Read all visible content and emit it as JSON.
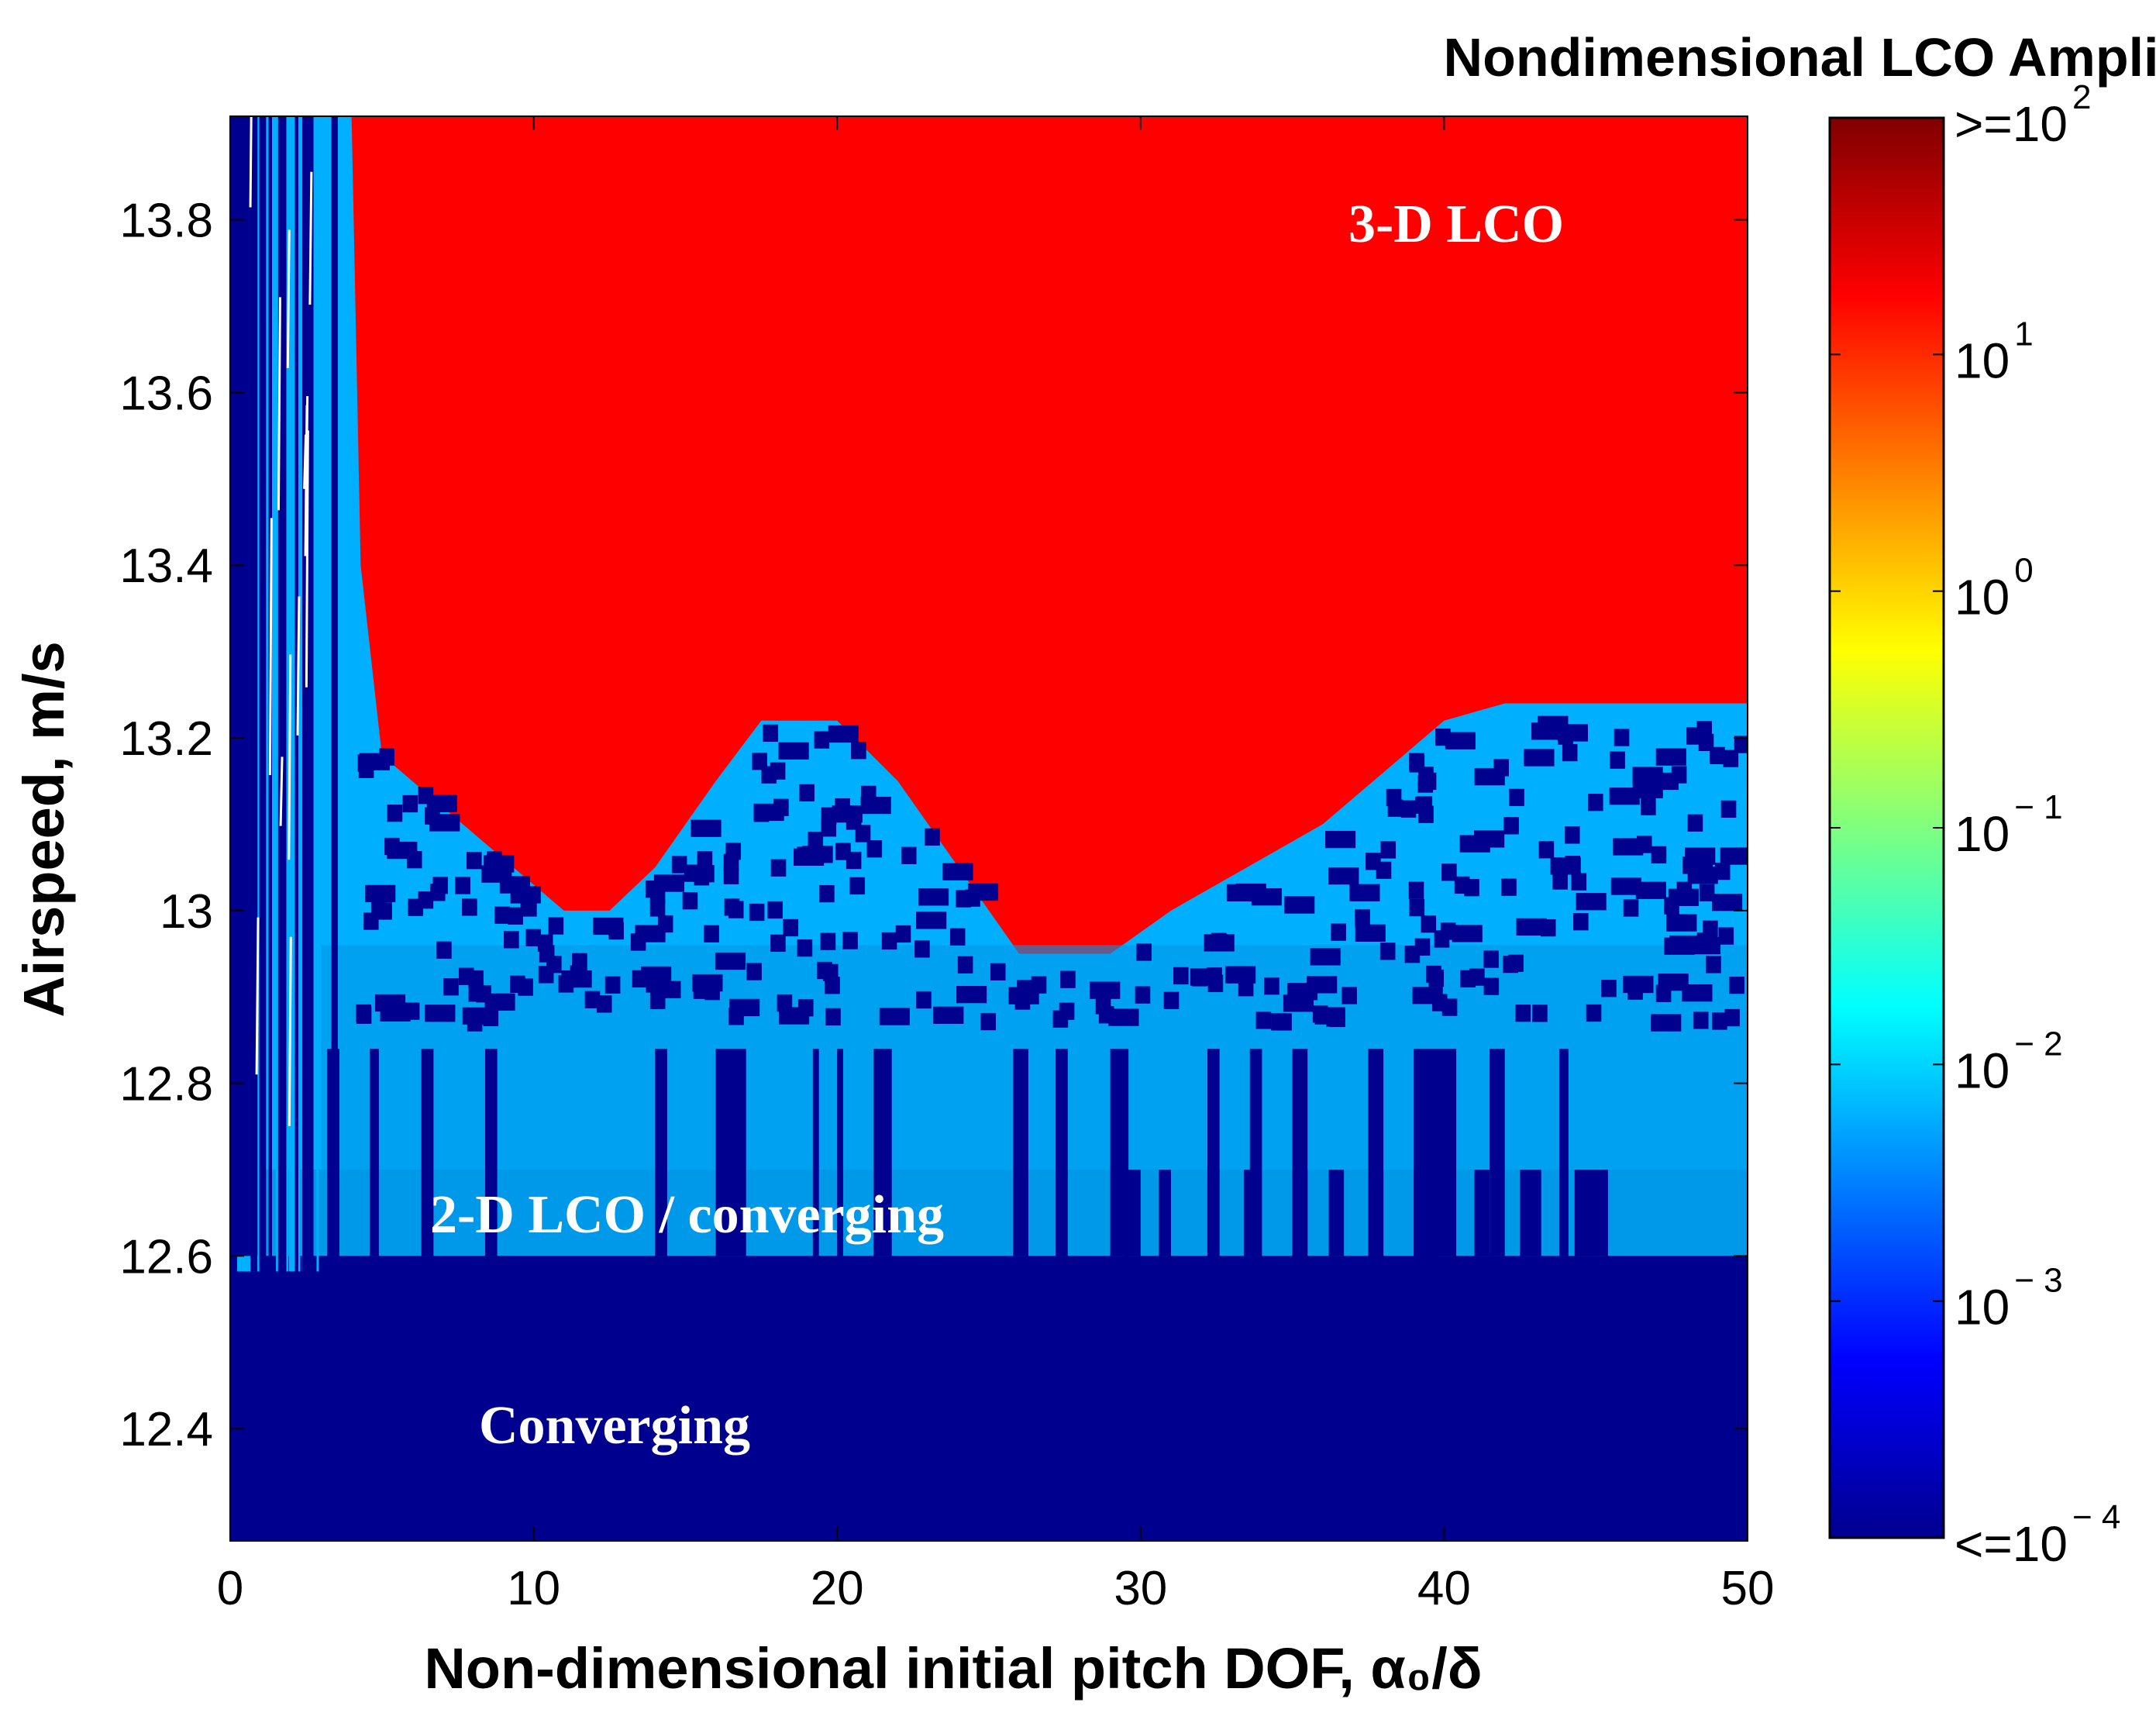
{
  "chart_data": {
    "type": "heatmap",
    "title": "",
    "xlabel": "Non-dimensional initial pitch DOF, α₀/δ",
    "ylabel": "Airspeed, m/s",
    "xlim": [
      0,
      50
    ],
    "ylim": [
      12.27,
      13.92
    ],
    "x_ticks": [
      "0",
      "10",
      "20",
      "30",
      "40",
      "50"
    ],
    "y_ticks": [
      "12.4",
      "12.6",
      "12.8",
      "13",
      "13.2",
      "13.4",
      "13.6",
      "13.8"
    ],
    "colorbar": {
      "title": "Nondimensional LCO Amplitude, A/ δ",
      "scale": "log10",
      "range": [
        -4,
        2
      ],
      "tick_values": [
        -4,
        -3,
        -2,
        -1,
        0,
        1,
        2
      ],
      "tick_labels": [
        {
          "prefix": "<=10",
          "exp": "− 4"
        },
        {
          "prefix": "10",
          "exp": "− 3"
        },
        {
          "prefix": "10",
          "exp": "− 2"
        },
        {
          "prefix": "10",
          "exp": "− 1"
        },
        {
          "prefix": "10",
          "exp": "0"
        },
        {
          "prefix": "10",
          "exp": "1"
        },
        {
          "prefix": ">=10",
          "exp": "2"
        }
      ]
    },
    "regions": [
      {
        "label": "3-D LCO",
        "log_amplitude": 1.8,
        "description_x_range": [
          4,
          50
        ],
        "lower_boundary": [
          [
            4,
            13.92
          ],
          [
            4.3,
            13.4
          ],
          [
            5,
            13.18
          ],
          [
            7,
            13.12
          ],
          [
            9,
            13.06
          ],
          [
            11,
            13.0
          ],
          [
            12.5,
            13.0
          ],
          [
            14,
            13.05
          ],
          [
            16,
            13.15
          ],
          [
            17.5,
            13.22
          ],
          [
            20,
            13.22
          ],
          [
            22,
            13.15
          ],
          [
            24,
            13.05
          ],
          [
            26,
            12.95
          ],
          [
            29,
            12.95
          ],
          [
            31,
            13.0
          ],
          [
            34,
            13.06
          ],
          [
            36,
            13.1
          ],
          [
            38,
            13.16
          ],
          [
            40,
            13.22
          ],
          [
            42,
            13.24
          ],
          [
            48,
            13.24
          ],
          [
            50,
            13.24
          ]
        ]
      },
      {
        "label": "2-D LCO / converging",
        "log_amplitude": -2.2,
        "y_range": [
          12.6,
          13.24
        ]
      },
      {
        "label": "Converging",
        "log_amplitude": -4,
        "y_range": [
          12.27,
          12.6
        ]
      }
    ],
    "annotations": [
      "3-D LCO",
      "2-D LCO / converging",
      "Converging"
    ]
  },
  "colors": {
    "lco3d": "#ff0000",
    "lco2d": "#00b0ff",
    "lco2d_dark": "#0098e8",
    "converging": "#00008f",
    "white": "#ffffff"
  }
}
